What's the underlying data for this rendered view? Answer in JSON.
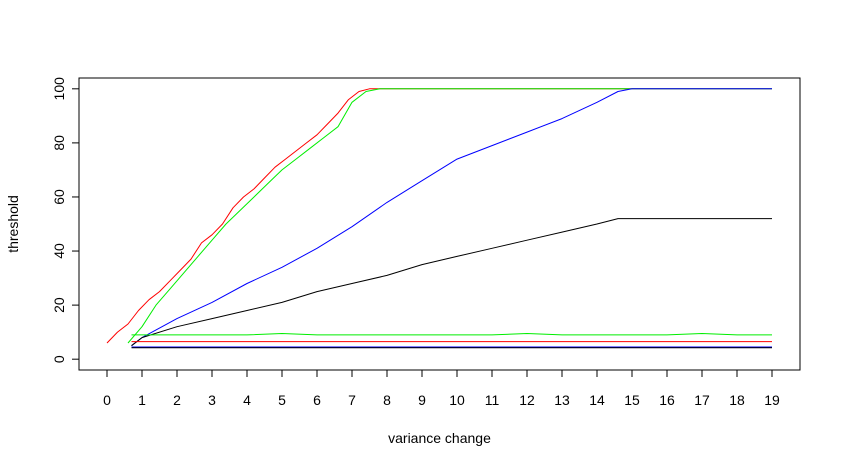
{
  "chart_data": {
    "type": "line",
    "title": "",
    "xlabel": "variance change",
    "ylabel": "threshold",
    "xlim": [
      -0.8,
      19.8
    ],
    "ylim": [
      -4,
      104
    ],
    "x_ticks": [
      "0",
      "1",
      "2",
      "3",
      "4",
      "5",
      "6",
      "7",
      "8",
      "9",
      "10",
      "11",
      "12",
      "13",
      "14",
      "15",
      "16",
      "17",
      "18",
      "19"
    ],
    "y_ticks": [
      "0",
      "20",
      "40",
      "60",
      "80",
      "100"
    ],
    "grid": false,
    "legend": "none",
    "series": [
      {
        "color": "#ff0000",
        "x": [
          0,
          0.3,
          0.6,
          0.9,
          1.2,
          1.5,
          1.8,
          2.1,
          2.4,
          2.7,
          3.0,
          3.3,
          3.6,
          3.9,
          4.2,
          4.5,
          4.8,
          5.1,
          5.4,
          5.7,
          6.0,
          6.3,
          6.6,
          6.9,
          7.2,
          7.5,
          7.8,
          8.1,
          8.5,
          9,
          10,
          11,
          12,
          13,
          14,
          15,
          16,
          17,
          18,
          19
        ],
        "values": [
          6,
          10,
          13,
          18,
          22,
          25,
          29,
          33,
          37,
          43,
          46,
          50,
          56,
          60,
          63,
          67,
          71,
          74,
          77,
          80,
          83,
          87,
          91,
          96,
          99,
          100,
          100,
          100,
          100,
          100,
          100,
          100,
          100,
          100,
          100,
          100,
          100,
          100,
          100,
          100
        ]
      },
      {
        "color": "#00ee00",
        "x": [
          0.6,
          1.0,
          1.4,
          1.8,
          2.2,
          2.6,
          3.0,
          3.4,
          3.8,
          4.2,
          4.6,
          5.0,
          5.4,
          5.8,
          6.2,
          6.6,
          7.0,
          7.4,
          7.8,
          8.2,
          8.6,
          9.0,
          9.5,
          10.0,
          10.5,
          11.0,
          12,
          13,
          14,
          15,
          16,
          17,
          18,
          19
        ],
        "values": [
          6,
          12,
          20,
          26,
          32,
          38,
          44,
          50,
          55,
          60,
          65,
          70,
          74,
          78,
          82,
          86,
          95,
          99,
          100,
          100,
          100,
          100,
          100,
          100,
          100,
          100,
          100,
          100,
          100,
          100,
          100,
          100,
          100,
          100
        ]
      },
      {
        "color": "#0000ff",
        "x": [
          0.7,
          1,
          2,
          3,
          4,
          5,
          6,
          7,
          8,
          9,
          10,
          11,
          12,
          13,
          14,
          14.6,
          15,
          16,
          17,
          18,
          19
        ],
        "values": [
          5,
          8,
          15,
          21,
          28,
          34,
          41,
          49,
          58,
          66,
          74,
          79,
          84,
          89,
          95,
          99,
          100,
          100,
          100,
          100,
          100
        ]
      },
      {
        "color": "#000000",
        "x": [
          0.7,
          1,
          2,
          3,
          4,
          5,
          6,
          7,
          8,
          9,
          10,
          11,
          12,
          13,
          14,
          14.6,
          15,
          16,
          17,
          18,
          19
        ],
        "values": [
          5,
          8,
          12,
          15,
          18,
          21,
          25,
          28,
          31,
          35,
          38,
          41,
          44,
          47,
          50,
          52,
          52,
          52,
          52,
          52,
          52
        ]
      },
      {
        "color": "#00ee00",
        "x": [
          0.7,
          1,
          2,
          3,
          4,
          5,
          6,
          7,
          8,
          9,
          10,
          11,
          12,
          13,
          14,
          15,
          16,
          17,
          18,
          19
        ],
        "values": [
          9,
          9,
          9,
          9,
          9,
          9.5,
          9,
          9,
          9,
          9,
          9,
          9,
          9.5,
          9,
          9,
          9,
          9,
          9.5,
          9,
          9
        ]
      },
      {
        "color": "#ff0000",
        "x": [
          0.7,
          1,
          2,
          3,
          4,
          5,
          6,
          7,
          8,
          9,
          10,
          11,
          12,
          13,
          14,
          15,
          16,
          17,
          18,
          19
        ],
        "values": [
          6.5,
          6.5,
          6.5,
          6.5,
          6.5,
          6.5,
          6.5,
          6.5,
          6.5,
          6.5,
          6.5,
          6.5,
          6.5,
          6.5,
          6.5,
          6.5,
          6.5,
          6.5,
          6.5,
          6.5
        ]
      },
      {
        "color": "#0000ff",
        "x": [
          0.7,
          1,
          2,
          3,
          4,
          5,
          6,
          7,
          8,
          9,
          10,
          11,
          12,
          13,
          14,
          15,
          16,
          17,
          18,
          19
        ],
        "values": [
          4.5,
          4.5,
          4.5,
          4.5,
          4.5,
          4.5,
          4.5,
          4.5,
          4.5,
          4.5,
          4.5,
          4.5,
          4.5,
          4.5,
          4.5,
          4.5,
          4.5,
          4.5,
          4.5,
          4.5
        ]
      },
      {
        "color": "#000000",
        "x": [
          0.7,
          1,
          2,
          3,
          4,
          5,
          6,
          7,
          8,
          9,
          10,
          11,
          12,
          13,
          14,
          15,
          16,
          17,
          18,
          19
        ],
        "values": [
          4.2,
          4.2,
          4.2,
          4.2,
          4.2,
          4.2,
          4.2,
          4.2,
          4.2,
          4.2,
          4.2,
          4.2,
          4.2,
          4.2,
          4.2,
          4.2,
          4.2,
          4.2,
          4.2,
          4.2
        ]
      }
    ]
  }
}
